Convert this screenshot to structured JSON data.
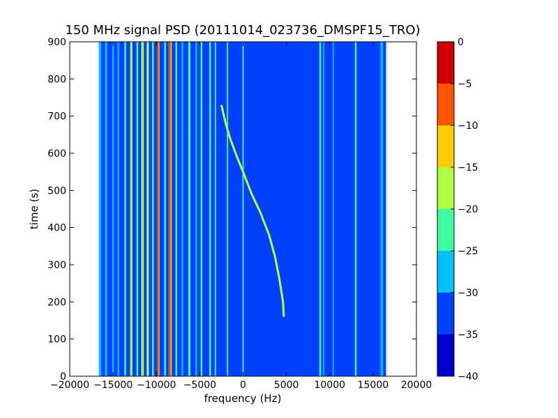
{
  "chart_data": {
    "type": "heatmap",
    "title": "150 MHz signal PSD (20111014_023736_DMSPF15_TRO)",
    "xlabel": "frequency (Hz)",
    "ylabel": "time (s)",
    "xlim": [
      -20000,
      20000
    ],
    "ylim": [
      0,
      900
    ],
    "x_ticks": [
      -20000,
      -15000,
      -10000,
      -5000,
      0,
      5000,
      10000,
      15000,
      20000
    ],
    "x_tick_labels": [
      "−20000",
      "−15000",
      "−10000",
      "−5000",
      "0",
      "5000",
      "10000",
      "15000",
      "20000"
    ],
    "y_ticks": [
      0,
      100,
      200,
      300,
      400,
      500,
      600,
      700,
      800,
      900
    ],
    "y_tick_labels": [
      "0",
      "100",
      "200",
      "300",
      "400",
      "500",
      "600",
      "700",
      "800",
      "900"
    ],
    "data_extent_x": [
      -16500,
      16500
    ],
    "colorbar": {
      "levels": [
        -40,
        -35,
        -30,
        -25,
        -20,
        -15,
        -10,
        -5,
        0
      ],
      "tick_labels": [
        "−40",
        "−35",
        "−30",
        "−25",
        "−20",
        "−15",
        "−10",
        "−5",
        "0"
      ],
      "colors": [
        "#0000cc",
        "#0040ff",
        "#00bfff",
        "#40ffa0",
        "#b0ff40",
        "#ffcc00",
        "#ff5500",
        "#cc0000"
      ]
    },
    "background_level_dbm": -32,
    "vertical_lines": [
      {
        "f": -16500,
        "t": [
          0,
          900
        ],
        "level": -28,
        "width": 300
      },
      {
        "f": -15800,
        "t": [
          0,
          900
        ],
        "level": -28,
        "width": 250
      },
      {
        "f": -15000,
        "t": [
          0,
          900
        ],
        "level": -27,
        "width": 200
      },
      {
        "f": -14400,
        "t": [
          0,
          900
        ],
        "level": -28,
        "width": 200
      },
      {
        "f": -13600,
        "t": [
          0,
          900
        ],
        "level": -22,
        "width": 200
      },
      {
        "f": -12900,
        "t": [
          0,
          900
        ],
        "level": -17,
        "width": 250
      },
      {
        "f": -12200,
        "t": [
          0,
          900
        ],
        "level": -25,
        "width": 200
      },
      {
        "f": -11600,
        "t": [
          0,
          900
        ],
        "level": -17,
        "width": 300
      },
      {
        "f": -11000,
        "t": [
          0,
          900
        ],
        "level": -20,
        "width": 250
      },
      {
        "f": -10400,
        "t": [
          0,
          900
        ],
        "level": -22,
        "width": 200
      },
      {
        "f": -9800,
        "t": [
          0,
          900
        ],
        "level": -12,
        "width": 300
      },
      {
        "f": -9000,
        "t": [
          0,
          900
        ],
        "level": -22,
        "width": 200
      },
      {
        "f": -8400,
        "t": [
          0,
          900
        ],
        "level": -12,
        "width": 350
      },
      {
        "f": -7700,
        "t": [
          0,
          900
        ],
        "level": -23,
        "width": 200
      },
      {
        "f": -7000,
        "t": [
          0,
          900
        ],
        "level": -27,
        "width": 200
      },
      {
        "f": -6200,
        "t": [
          0,
          900
        ],
        "level": -23,
        "width": 250
      },
      {
        "f": -5400,
        "t": [
          0,
          900
        ],
        "level": -26,
        "width": 200
      },
      {
        "f": -4800,
        "t": [
          0,
          900
        ],
        "level": -23,
        "width": 200
      },
      {
        "f": -3800,
        "t": [
          0,
          900
        ],
        "level": -22,
        "width": 200
      },
      {
        "f": -3200,
        "t": [
          0,
          900
        ],
        "level": -25,
        "width": 150
      },
      {
        "f": -1800,
        "t": [
          0,
          900
        ],
        "level": -25,
        "width": 150
      },
      {
        "f": 0,
        "t": [
          0,
          900
        ],
        "level": -22,
        "width": 150
      },
      {
        "f": 8900,
        "t": [
          0,
          900
        ],
        "level": -22,
        "width": 200
      },
      {
        "f": 9300,
        "t": [
          0,
          900
        ],
        "level": -28,
        "width": 150
      },
      {
        "f": 10400,
        "t": [
          0,
          900
        ],
        "level": -30,
        "width": 150
      },
      {
        "f": 13000,
        "t": [
          0,
          900
        ],
        "level": -24,
        "width": 200
      },
      {
        "f": 16000,
        "t": [
          0,
          900
        ],
        "level": -28,
        "width": 300
      }
    ],
    "peak_lines": [
      {
        "f": -9850,
        "t": [
          0,
          900
        ],
        "level": -3,
        "width": 100
      },
      {
        "f": -8450,
        "t": [
          0,
          900
        ],
        "level": -3,
        "width": 100
      }
    ],
    "doppler_trace": {
      "level": -18,
      "points": [
        [
          -2500,
          730
        ],
        [
          -2000,
          680
        ],
        [
          -1500,
          640
        ],
        [
          -700,
          590
        ],
        [
          0,
          550
        ],
        [
          1000,
          490
        ],
        [
          2000,
          440
        ],
        [
          3000,
          380
        ],
        [
          3700,
          320
        ],
        [
          4200,
          260
        ],
        [
          4600,
          200
        ],
        [
          4700,
          160
        ]
      ]
    }
  }
}
